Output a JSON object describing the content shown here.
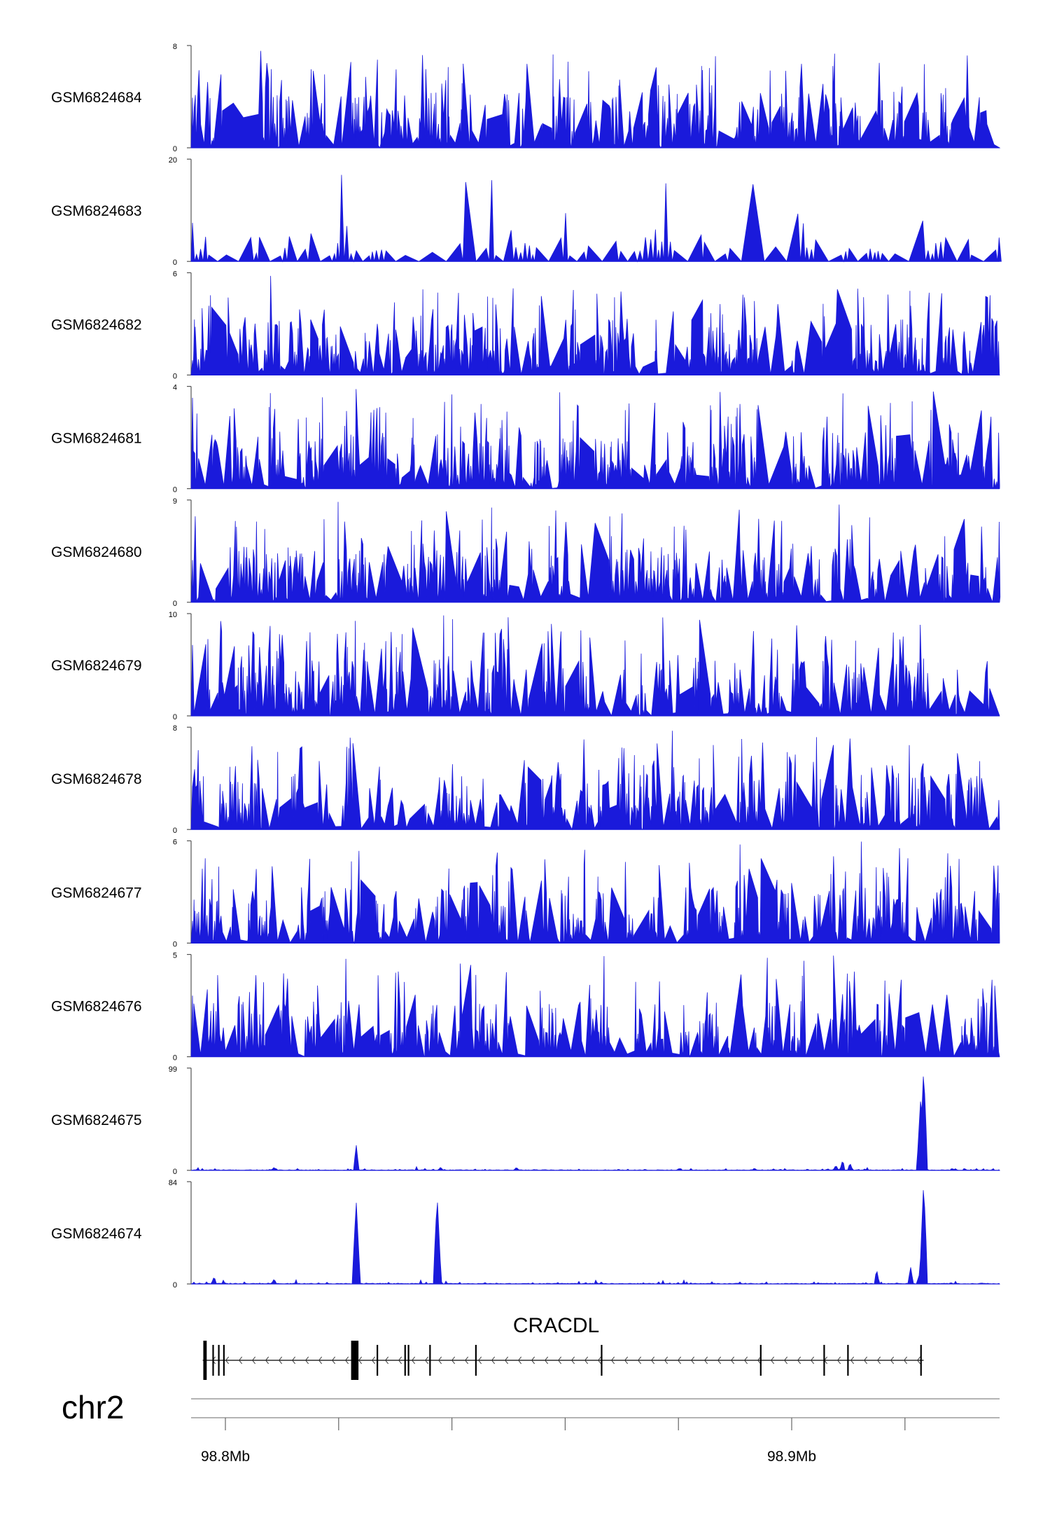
{
  "chart_data": {
    "type": "area",
    "chromosome": "chr2",
    "track_color": "#1a1adb",
    "x_ticks": [
      {
        "label": "98.8Mb",
        "value": 98.8
      },
      {
        "label": "",
        "value": 98.82
      },
      {
        "label": "",
        "value": 98.84
      },
      {
        "label": "",
        "value": 98.86
      },
      {
        "label": "",
        "value": 98.88
      },
      {
        "label": "98.9Mb",
        "value": 98.9
      },
      {
        "label": "",
        "value": 98.92
      }
    ],
    "tracks": [
      {
        "name": "GSM6824684",
        "ymax": 8,
        "ymin_label": "0",
        "ymax_label": "8",
        "profile": "noise"
      },
      {
        "name": "GSM6824683",
        "ymax": 20,
        "ymin_label": "0",
        "ymax_label": "20",
        "profile": "sparse"
      },
      {
        "name": "GSM6824682",
        "ymax": 6,
        "ymin_label": "0",
        "ymax_label": "6",
        "profile": "noise"
      },
      {
        "name": "GSM6824681",
        "ymax": 4,
        "ymin_label": "0",
        "ymax_label": "4",
        "profile": "noise"
      },
      {
        "name": "GSM6824680",
        "ymax": 9,
        "ymin_label": "0",
        "ymax_label": "9",
        "profile": "noise"
      },
      {
        "name": "GSM6824679",
        "ymax": 10,
        "ymin_label": "0",
        "ymax_label": "10",
        "profile": "noise"
      },
      {
        "name": "GSM6824678",
        "ymax": 8,
        "ymin_label": "0",
        "ymax_label": "8",
        "profile": "noise"
      },
      {
        "name": "GSM6824677",
        "ymax": 6,
        "ymin_label": "0",
        "ymax_label": "6",
        "profile": "noise"
      },
      {
        "name": "GSM6824676",
        "ymax": 5,
        "ymin_label": "0",
        "ymax_label": "5",
        "profile": "noise"
      },
      {
        "name": "GSM6824675",
        "ymax": 99,
        "ymin_label": "0",
        "ymax_label": "99",
        "profile": "peaks",
        "peaks": [
          {
            "pos": 98.8086,
            "value": 3
          },
          {
            "pos": 98.8231,
            "value": 25
          },
          {
            "pos": 98.838,
            "value": 3
          },
          {
            "pos": 98.8514,
            "value": 3
          },
          {
            "pos": 98.9078,
            "value": 5
          },
          {
            "pos": 98.909,
            "value": 10
          },
          {
            "pos": 98.9103,
            "value": 7
          },
          {
            "pos": 98.9228,
            "value": 72
          },
          {
            "pos": 98.9233,
            "value": 99
          }
        ]
      },
      {
        "name": "GSM6824674",
        "ymax": 84,
        "ymin_label": "0",
        "ymax_label": "84",
        "profile": "peaks",
        "peaks": [
          {
            "pos": 98.798,
            "value": 6
          },
          {
            "pos": 98.8086,
            "value": 4
          },
          {
            "pos": 98.8231,
            "value": 68
          },
          {
            "pos": 98.8374,
            "value": 72
          },
          {
            "pos": 98.915,
            "value": 12
          },
          {
            "pos": 98.921,
            "value": 14
          },
          {
            "pos": 98.9225,
            "value": 7
          },
          {
            "pos": 98.9233,
            "value": 84
          }
        ]
      }
    ],
    "gene": {
      "name": "CRACDL",
      "strand": "-",
      "start": 98.796,
      "end": 98.9233,
      "exons": [
        {
          "start": 98.7961,
          "end": 98.7967
        },
        {
          "start": 98.7977,
          "end": 98.7979
        },
        {
          "start": 98.7987,
          "end": 98.7989
        },
        {
          "start": 98.7996,
          "end": 98.7998
        },
        {
          "start": 98.8222,
          "end": 98.8235
        },
        {
          "start": 98.8267,
          "end": 98.8269
        },
        {
          "start": 98.8316,
          "end": 98.8318
        },
        {
          "start": 98.8322,
          "end": 98.8324
        },
        {
          "start": 98.836,
          "end": 98.8362
        },
        {
          "start": 98.8441,
          "end": 98.8443
        },
        {
          "start": 98.8663,
          "end": 98.8665
        },
        {
          "start": 98.8944,
          "end": 98.8946
        },
        {
          "start": 98.9056,
          "end": 98.9058
        },
        {
          "start": 98.9098,
          "end": 98.91
        },
        {
          "start": 98.9227,
          "end": 98.9229
        }
      ]
    }
  }
}
